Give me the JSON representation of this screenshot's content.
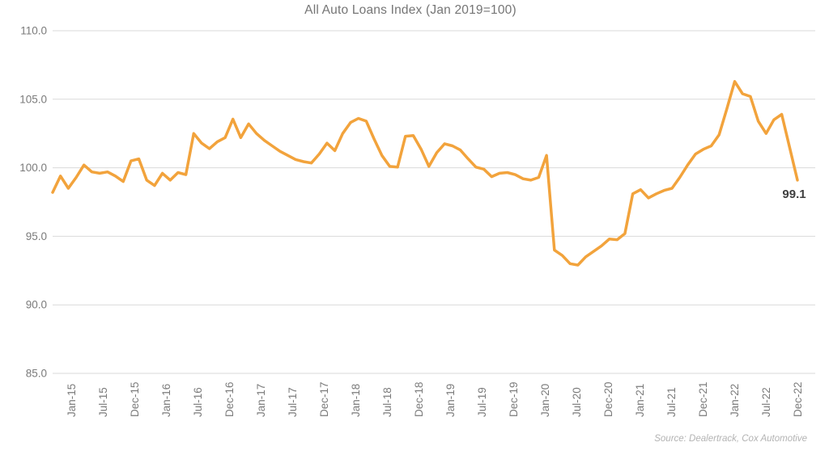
{
  "title": "All Auto Loans Index (Jan 2019=100)",
  "source_note": "Source: Dealertrack, Cox Automotive",
  "colors": {
    "line": "#F2A33C",
    "grid": "#D9D9D9",
    "axis_text": "#7B7B7B",
    "title_text": "#757575",
    "end_label_text": "#3F3F3F",
    "source_text": "#B3B3B3",
    "background": "#FFFFFF"
  },
  "chart_data": {
    "type": "line",
    "title": "All Auto Loans Index (Jan 2019=100)",
    "series_name": "All Auto Loans Index",
    "frequency": "monthly",
    "x_start": "Jan-15",
    "x_end": "Dec-22",
    "x_tick_labels": [
      "Jan-15",
      "Jul-15",
      "Dec-15",
      "Jan-16",
      "Jul-16",
      "Dec-16",
      "Jan-17",
      "Jul-17",
      "Dec-17",
      "Jan-18",
      "Jul-18",
      "Dec-18",
      "Jan-19",
      "Jul-19",
      "Dec-19",
      "Jan-20",
      "Jul-20",
      "Dec-20",
      "Jan-21",
      "Jul-21",
      "Dec-21",
      "Jan-22",
      "Jul-22",
      "Dec-22"
    ],
    "y_ticks": [
      85.0,
      90.0,
      95.0,
      100.0,
      105.0,
      110.0
    ],
    "ylim": [
      85.0,
      110.0
    ],
    "gridlines": "horizontal",
    "legend": "none",
    "end_label": "99.1",
    "values": [
      98.2,
      99.4,
      98.5,
      99.3,
      100.2,
      99.7,
      99.6,
      99.7,
      99.4,
      99.0,
      100.5,
      100.65,
      99.1,
      98.7,
      99.6,
      99.1,
      99.65,
      99.5,
      102.5,
      101.8,
      101.4,
      101.9,
      102.2,
      103.55,
      102.2,
      103.2,
      102.5,
      102.0,
      101.6,
      101.2,
      100.9,
      100.6,
      100.45,
      100.35,
      101.0,
      101.8,
      101.25,
      102.5,
      103.3,
      103.6,
      103.4,
      102.1,
      100.9,
      100.1,
      100.05,
      102.3,
      102.35,
      101.35,
      100.1,
      101.1,
      101.75,
      101.6,
      101.3,
      100.65,
      100.05,
      99.9,
      99.35,
      99.6,
      99.65,
      99.5,
      99.2,
      99.1,
      99.3,
      100.9,
      94.0,
      93.6,
      93.0,
      92.9,
      93.5,
      93.9,
      94.3,
      94.8,
      94.75,
      95.2,
      98.1,
      98.4,
      97.8,
      98.1,
      98.35,
      98.5,
      99.3,
      100.2,
      101.0,
      101.35,
      101.6,
      102.4,
      104.3,
      106.3,
      105.4,
      105.2,
      103.4,
      102.5,
      103.5,
      103.9,
      101.5,
      99.1
    ]
  }
}
